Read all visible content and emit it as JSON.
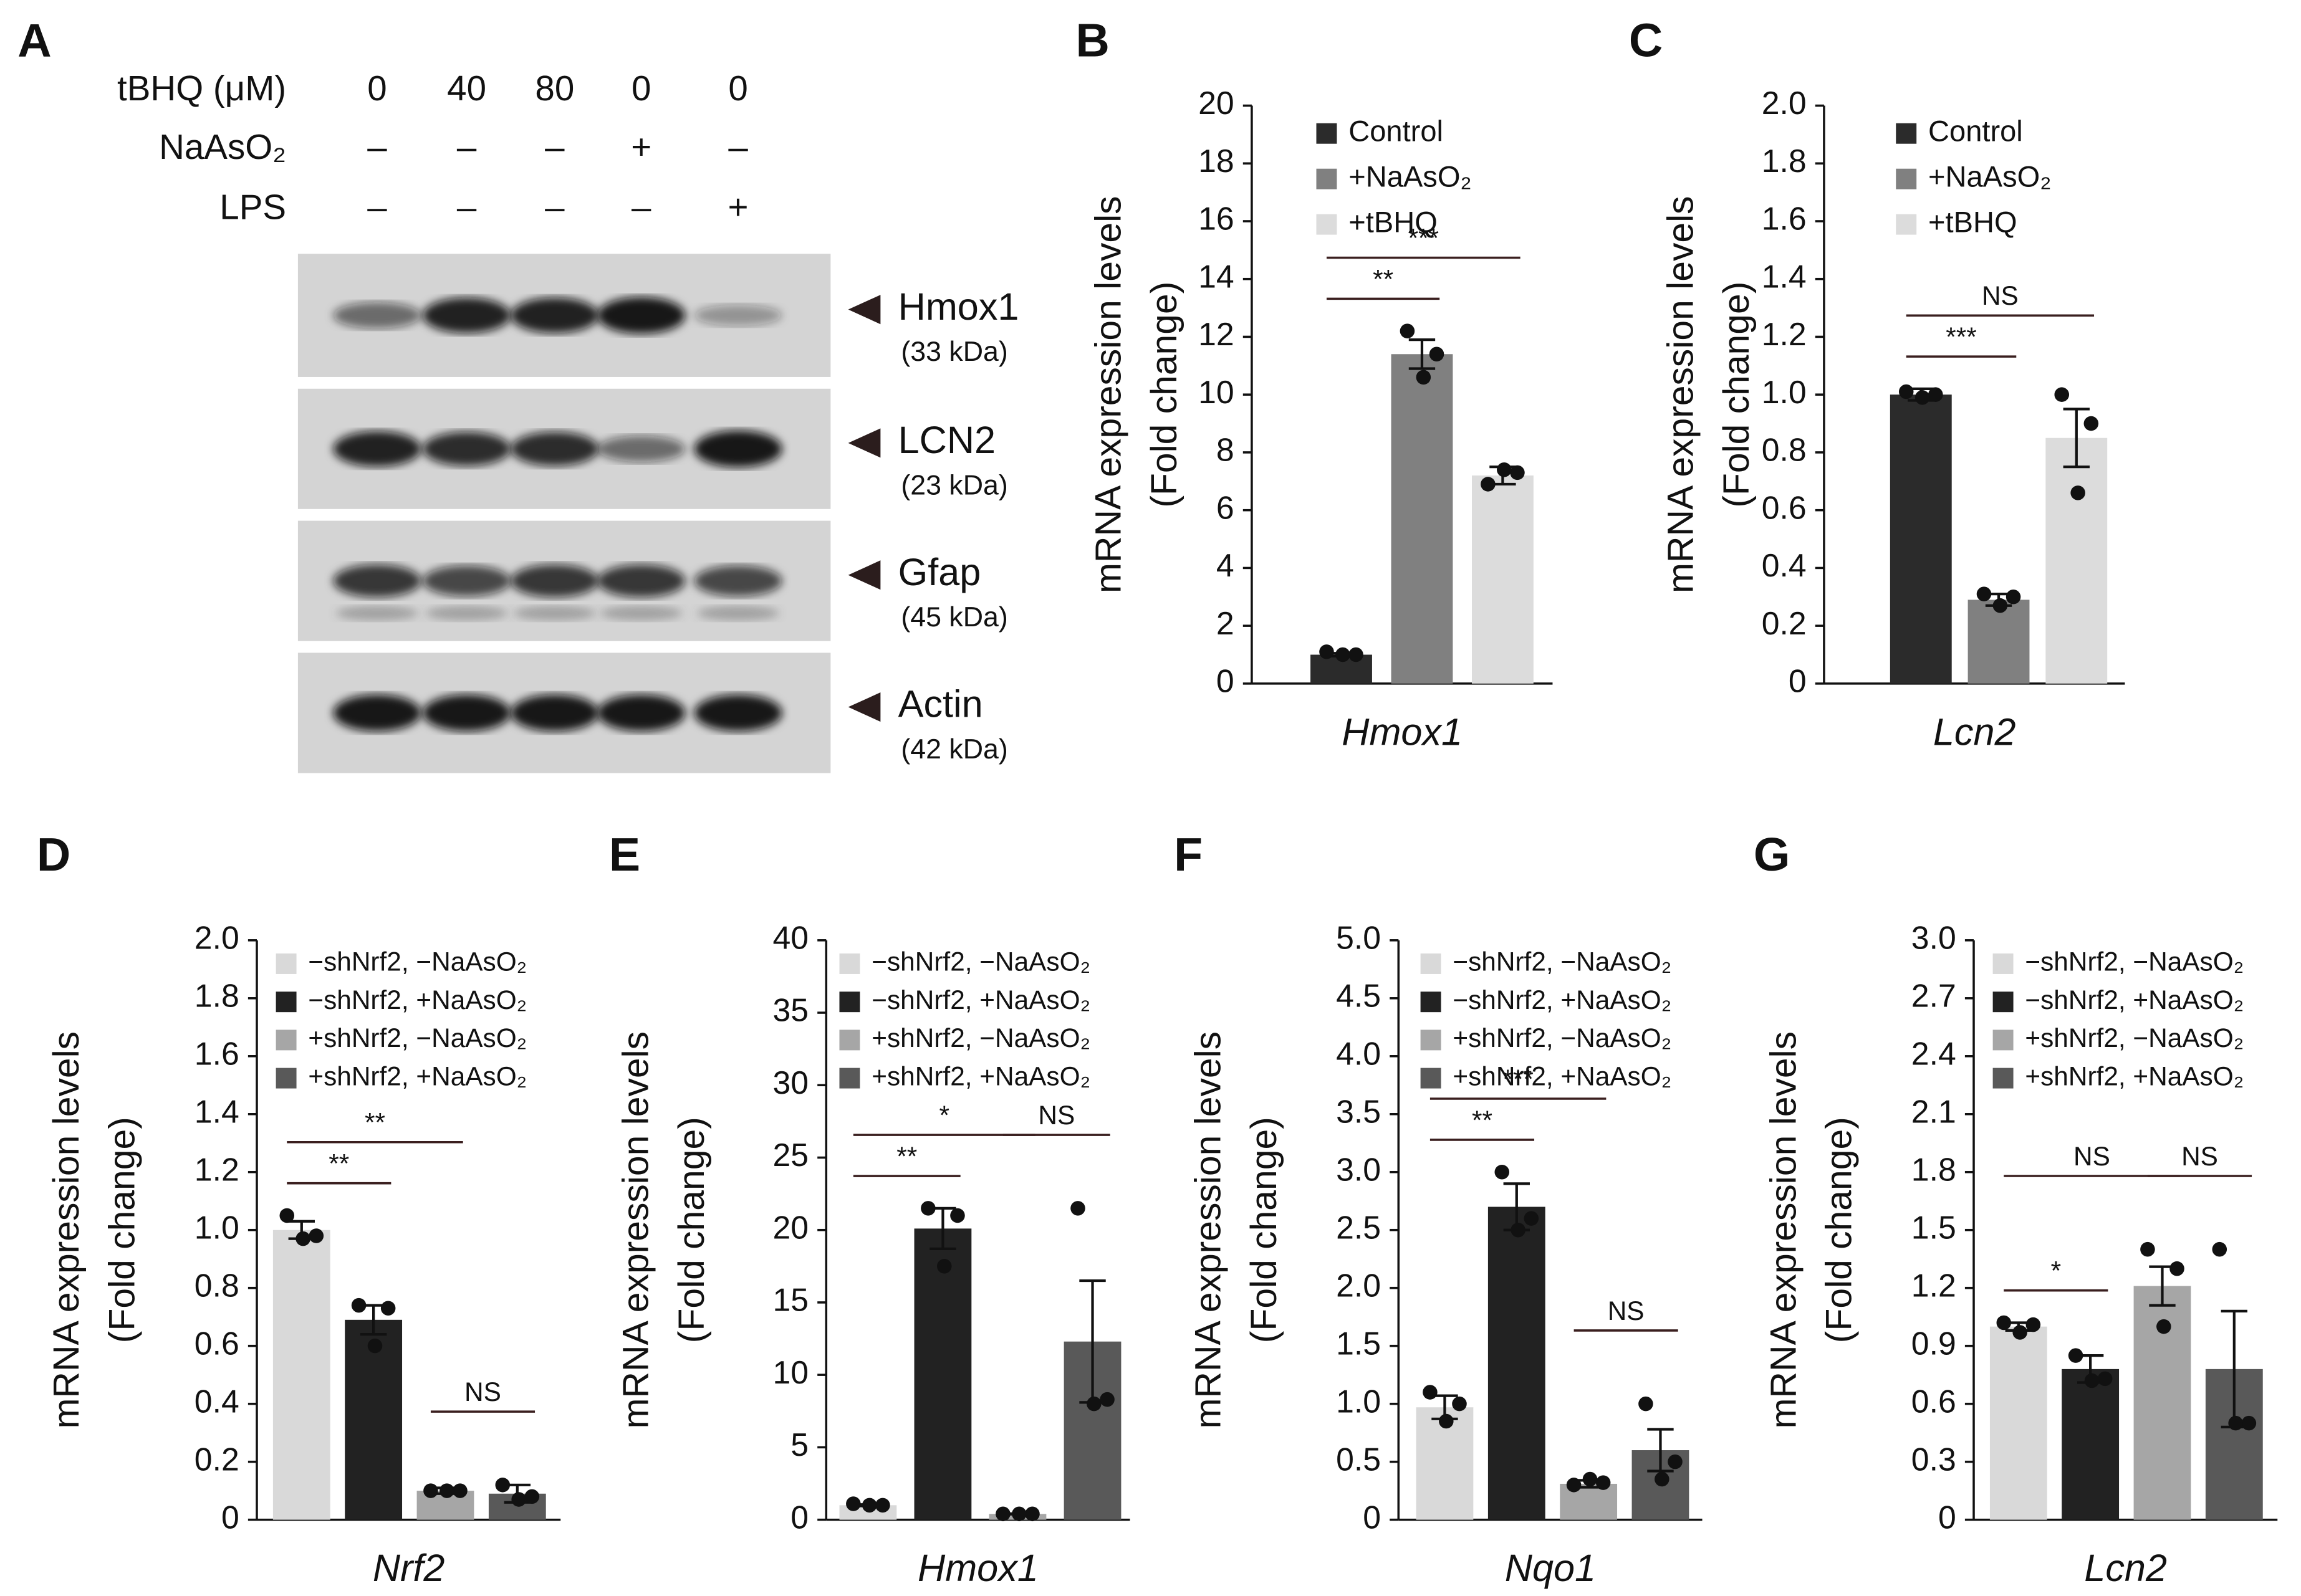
{
  "blot": {
    "panel_label": "A",
    "conditions": [
      {
        "label": "tBHQ (μM)",
        "lanes": [
          "0",
          "40",
          "80",
          "0",
          "0"
        ]
      },
      {
        "label": "NaAsO₂",
        "lanes": [
          "–",
          "–",
          "–",
          "+",
          "–"
        ]
      },
      {
        "label": "LPS",
        "lanes": [
          "–",
          "–",
          "–",
          "–",
          "+"
        ]
      }
    ],
    "bands": [
      {
        "name": "Hmox1",
        "size": "(33 kDa)"
      },
      {
        "name": "LCN2",
        "size": "(23 kDa)"
      },
      {
        "name": "Gfap",
        "size": "(45 kDa)"
      },
      {
        "name": "Actin",
        "size": "(42 kDa)"
      }
    ]
  },
  "chart_data": [
    {
      "type": "bar",
      "panel_label": "B",
      "ylabel": [
        "mRNA expression levels",
        "(Fold change)"
      ],
      "xlabel": "Hmox1",
      "ylim": [
        0,
        20
      ],
      "yticks": [
        0,
        2,
        4,
        6,
        8,
        10,
        12,
        14,
        16,
        18,
        20
      ],
      "series": [
        {
          "name": "Control",
          "color": "#2b2b2b",
          "values": [
            1.0
          ],
          "errors": [
            0.05
          ],
          "points": [
            1.1,
            1.0,
            1.0
          ]
        },
        {
          "name": "+NaAsO₂",
          "color": "#808080",
          "values": [
            11.4
          ],
          "errors": [
            0.5
          ],
          "points": [
            12.2,
            11.4,
            10.6
          ]
        },
        {
          "name": "+tBHQ",
          "color": "#dcdcdc",
          "values": [
            7.2
          ],
          "errors": [
            0.3
          ],
          "points": [
            6.9,
            7.3,
            7.4
          ]
        }
      ],
      "annotations": [
        {
          "label": "**",
          "between": [
            0,
            1
          ]
        },
        {
          "label": "***",
          "between": [
            0,
            2
          ]
        }
      ]
    },
    {
      "type": "bar",
      "panel_label": "C",
      "ylabel": [
        "mRNA expression levels",
        "(Fold change)"
      ],
      "xlabel": "Lcn2",
      "ylim": [
        0,
        2
      ],
      "yticks": [
        0,
        0.2,
        0.4,
        0.6,
        0.8,
        {
          "value": 1,
          "label": "1.0"
        },
        1.2,
        1.4,
        1.6,
        1.8,
        {
          "value": 2,
          "label": "2.0"
        }
      ],
      "series": [
        {
          "name": "Control",
          "color": "#2b2b2b",
          "values": [
            1.0
          ],
          "errors": [
            0.02
          ],
          "points": [
            1.01,
            1.0,
            0.99
          ]
        },
        {
          "name": "+NaAsO₂",
          "color": "#808080",
          "values": [
            0.29
          ],
          "errors": [
            0.02
          ],
          "points": [
            0.31,
            0.3,
            0.27
          ]
        },
        {
          "name": "+tBHQ",
          "color": "#dcdcdc",
          "values": [
            0.85
          ],
          "errors": [
            0.1
          ],
          "points": [
            1.0,
            0.9,
            0.66
          ]
        }
      ],
      "annotations": [
        {
          "label": "***",
          "between": [
            0,
            1
          ]
        },
        {
          "label": "NS",
          "between": [
            0,
            2
          ]
        }
      ]
    },
    {
      "type": "bar",
      "panel_label": "D",
      "ylabel": [
        "mRNA expression levels",
        "(Fold change)"
      ],
      "xlabel": "Nrf2",
      "ylim": [
        0,
        2
      ],
      "yticks": [
        0,
        0.2,
        0.4,
        0.6,
        0.8,
        {
          "value": 1,
          "label": "1.0"
        },
        1.2,
        1.4,
        1.6,
        1.8,
        {
          "value": 2,
          "label": "2.0"
        }
      ],
      "series": [
        {
          "name": "−shNrf2, −NaAsO₂",
          "color": "#d9d9d9",
          "values": [
            1.0
          ],
          "errors": [
            0.03
          ],
          "points": [
            1.05,
            0.98,
            0.97
          ]
        },
        {
          "name": "−shNrf2, +NaAsO₂",
          "color": "#222222",
          "values": [
            0.69
          ],
          "errors": [
            0.05
          ],
          "points": [
            0.74,
            0.73,
            0.6
          ]
        },
        {
          "name": "+shNrf2, −NaAsO₂",
          "color": "#a6a6a6",
          "values": [
            0.1
          ],
          "errors": [
            0.01
          ],
          "points": [
            0.1,
            0.1,
            0.1
          ]
        },
        {
          "name": "+shNrf2, +NaAsO₂",
          "color": "#595959",
          "values": [
            0.09
          ],
          "errors": [
            0.03
          ],
          "points": [
            0.12,
            0.08,
            0.07
          ]
        }
      ],
      "annotations": [
        {
          "label": "**",
          "between": [
            0,
            1
          ]
        },
        {
          "label": "**",
          "between": [
            0,
            2
          ]
        },
        {
          "label": "NS",
          "between": [
            2,
            3
          ]
        }
      ]
    },
    {
      "type": "bar",
      "panel_label": "E",
      "ylabel": [
        "mRNA expression levels",
        "(Fold change)"
      ],
      "xlabel": "Hmox1",
      "ylim": [
        0,
        40
      ],
      "yticks": [
        0,
        5,
        10,
        15,
        20,
        25,
        30,
        35,
        40
      ],
      "series": [
        {
          "name": "−shNrf2, −NaAsO₂",
          "color": "#d9d9d9",
          "values": [
            1.0
          ],
          "errors": [
            0.05
          ],
          "points": [
            1.1,
            1.0,
            1.0
          ]
        },
        {
          "name": "−shNrf2, +NaAsO₂",
          "color": "#222222",
          "values": [
            20.1
          ],
          "errors": [
            1.4
          ],
          "points": [
            21.5,
            21.0,
            17.5
          ]
        },
        {
          "name": "+shNrf2, −NaAsO₂",
          "color": "#a6a6a6",
          "values": [
            0.4
          ],
          "errors": [
            0.02
          ],
          "points": [
            0.4,
            0.4,
            0.4
          ]
        },
        {
          "name": "+shNrf2, +NaAsO₂",
          "color": "#595959",
          "values": [
            12.3
          ],
          "errors": [
            4.2
          ],
          "points": [
            21.5,
            8.3,
            8.0
          ]
        }
      ],
      "annotations": [
        {
          "label": "**",
          "between": [
            0,
            1
          ]
        },
        {
          "label": "*",
          "between": [
            0,
            2
          ]
        },
        {
          "label": "NS",
          "between": [
            2,
            3
          ]
        }
      ]
    },
    {
      "type": "bar",
      "panel_label": "F",
      "ylabel": [
        "mRNA expression levels",
        "(Fold change)"
      ],
      "xlabel": "Nqo1",
      "ylim": [
        0,
        5
      ],
      "yticks": [
        0,
        0.5,
        {
          "value": 1,
          "label": "1.0"
        },
        1.5,
        {
          "value": 2,
          "label": "2.0"
        },
        2.5,
        {
          "value": 3,
          "label": "3.0"
        },
        3.5,
        {
          "value": 4,
          "label": "4.0"
        },
        4.5,
        {
          "value": 5,
          "label": "5.0"
        }
      ],
      "series": [
        {
          "name": "−shNrf2, −NaAsO₂",
          "color": "#d9d9d9",
          "values": [
            0.97
          ],
          "errors": [
            0.1
          ],
          "points": [
            1.1,
            1.0,
            0.85
          ]
        },
        {
          "name": "−shNrf2, +NaAsO₂",
          "color": "#222222",
          "values": [
            2.7
          ],
          "errors": [
            0.2
          ],
          "points": [
            3.0,
            2.6,
            2.5
          ]
        },
        {
          "name": "+shNrf2, −NaAsO₂",
          "color": "#a6a6a6",
          "values": [
            0.31
          ],
          "errors": [
            0.03
          ],
          "points": [
            0.3,
            0.32,
            0.35
          ]
        },
        {
          "name": "+shNrf2, +NaAsO₂",
          "color": "#595959",
          "values": [
            0.6
          ],
          "errors": [
            0.18
          ],
          "points": [
            1.0,
            0.5,
            0.35
          ]
        }
      ],
      "annotations": [
        {
          "label": "**",
          "between": [
            0,
            1
          ]
        },
        {
          "label": "***",
          "between": [
            0,
            2
          ]
        },
        {
          "label": "NS",
          "between": [
            2,
            3
          ]
        }
      ]
    },
    {
      "type": "bar",
      "panel_label": "G",
      "ylabel": [
        "mRNA expression levels",
        "(Fold change)"
      ],
      "xlabel": "Lcn2",
      "ylim": [
        0,
        3
      ],
      "yticks": [
        0,
        0.3,
        0.6,
        0.9,
        1.2,
        1.5,
        1.8,
        2.1,
        2.4,
        2.7,
        {
          "value": 3,
          "label": "3.0"
        }
      ],
      "series": [
        {
          "name": "−shNrf2, −NaAsO₂",
          "color": "#d9d9d9",
          "values": [
            1.0
          ],
          "errors": [
            0.02
          ],
          "points": [
            1.02,
            1.01,
            0.97
          ]
        },
        {
          "name": "−shNrf2, +NaAsO₂",
          "color": "#222222",
          "values": [
            0.78
          ],
          "errors": [
            0.07
          ],
          "points": [
            0.85,
            0.73,
            0.72
          ]
        },
        {
          "name": "+shNrf2, −NaAsO₂",
          "color": "#a6a6a6",
          "values": [
            1.21
          ],
          "errors": [
            0.1
          ],
          "points": [
            1.4,
            1.3,
            1.0
          ]
        },
        {
          "name": "+shNrf2, +NaAsO₂",
          "color": "#595959",
          "values": [
            0.78
          ],
          "errors": [
            0.3
          ],
          "points": [
            1.4,
            0.5,
            0.5
          ]
        }
      ],
      "annotations": [
        {
          "label": "*",
          "between": [
            0,
            1
          ]
        },
        {
          "label": "NS",
          "between": [
            0,
            2
          ]
        },
        {
          "label": "NS",
          "between": [
            2,
            3
          ]
        }
      ]
    }
  ]
}
